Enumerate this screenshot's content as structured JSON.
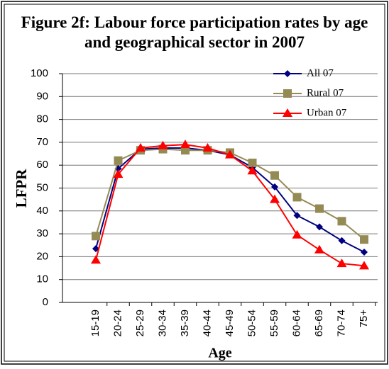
{
  "chart_data": {
    "type": "line",
    "title": "Figure 2f: Labour force participation rates by age and geographical sector in 2007",
    "x_label": "Age",
    "y_label": "LFPR",
    "categories": [
      "15-19",
      "20-24",
      "25-29",
      "30-34",
      "35-39",
      "40-44",
      "45-49",
      "50-54",
      "55-59",
      "60-64",
      "65-69",
      "70-74",
      "75+"
    ],
    "series": [
      {
        "name": "All 07",
        "color": "#000080",
        "marker": "diamond",
        "values": [
          23.5,
          58.5,
          67,
          67.5,
          67.5,
          66.5,
          64.5,
          59,
          50.5,
          38,
          33,
          27,
          22
        ]
      },
      {
        "name": "Rural 07",
        "color": "#948A54",
        "marker": "square",
        "values": [
          29,
          62,
          66.5,
          67,
          66.5,
          66.5,
          65.5,
          61,
          55.5,
          46,
          41,
          35.5,
          27.5
        ]
      },
      {
        "name": "Urban 07",
        "color": "#FF0000",
        "marker": "triangle",
        "values": [
          18.5,
          56,
          67.5,
          68.5,
          69,
          67.5,
          64.5,
          57.5,
          45,
          29.5,
          23,
          17,
          16
        ]
      }
    ],
    "ylim": [
      0,
      100
    ],
    "yticks": [
      0,
      10,
      20,
      30,
      40,
      50,
      60,
      70,
      80,
      90,
      100
    ],
    "grid": true,
    "legend": "top right"
  }
}
